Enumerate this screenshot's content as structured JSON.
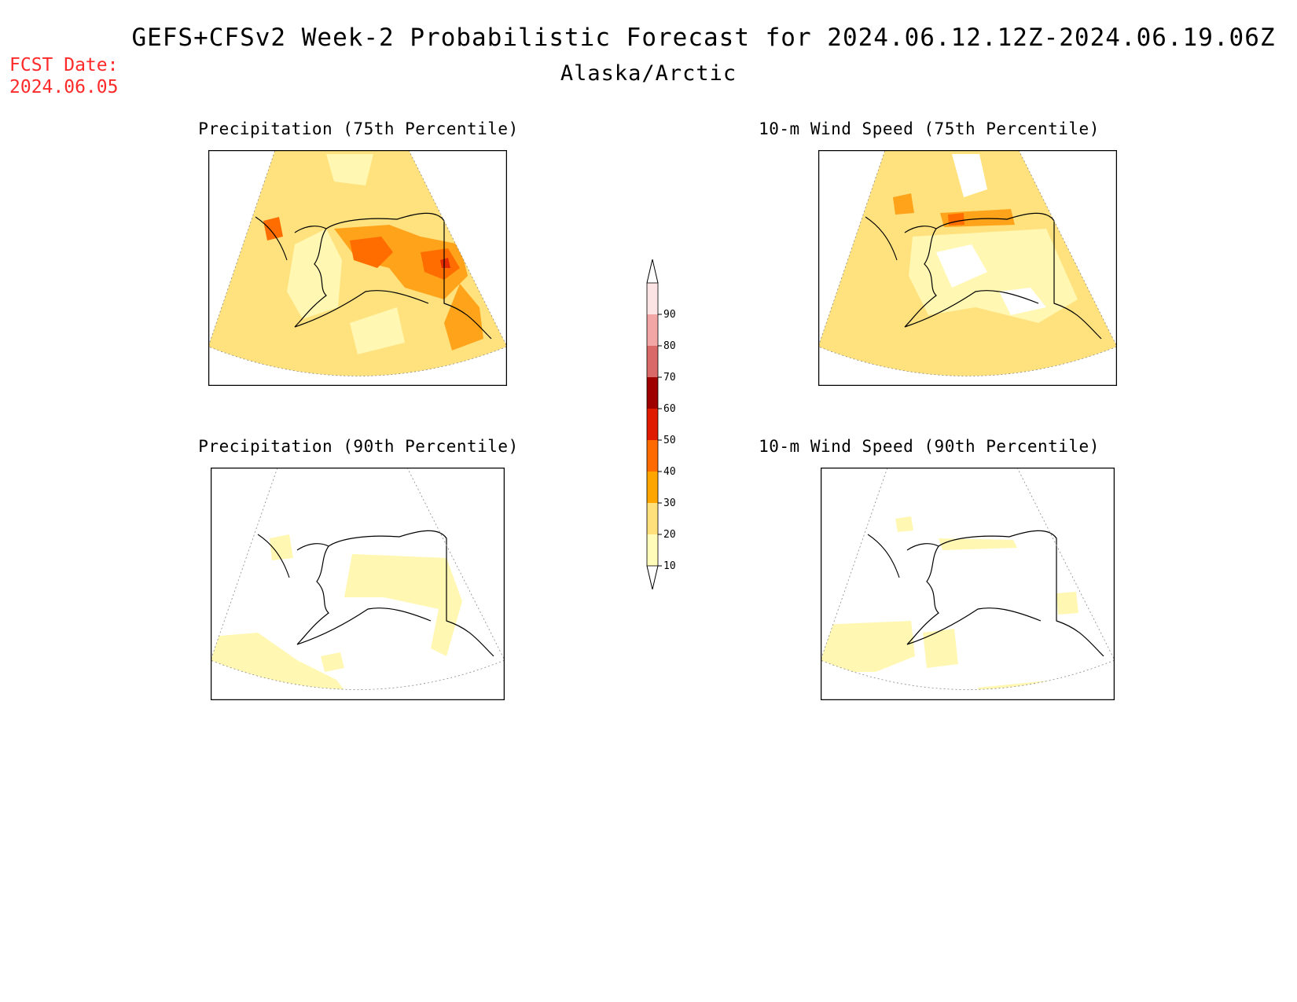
{
  "title": "GEFS+CFSv2 Week-2 Probabilistic Forecast for 2024.06.12.12Z-2024.06.19.06Z",
  "subtitle": "Alaska/Arctic",
  "forecast_date": {
    "label": "FCST Date:",
    "value": "2024.06.05"
  },
  "panels": [
    {
      "id": "precip75",
      "title": "Precipitation (75th Percentile)"
    },
    {
      "id": "wind75",
      "title": "10-m Wind Speed (75th Percentile)"
    },
    {
      "id": "precip90",
      "title": "Precipitation (90th Percentile)"
    },
    {
      "id": "wind90",
      "title": "10-m Wind Speed (90th Percentile)"
    }
  ],
  "colorbar": {
    "levels": [
      "10",
      "20",
      "30",
      "40",
      "50",
      "60",
      "70",
      "80",
      "90"
    ],
    "colors": [
      "#fffbb8",
      "#ffe07a",
      "#ffa500",
      "#ff6a00",
      "#e01a00",
      "#9e0000",
      "#d96868",
      "#f2a6a6",
      "#fde4e4"
    ]
  },
  "fill_colors": {
    "light": "#fff7b2",
    "yellow": "#ffe27e",
    "orange": "#ffa31a",
    "dark_orange": "#ff6c00",
    "red": "#e52a00"
  }
}
